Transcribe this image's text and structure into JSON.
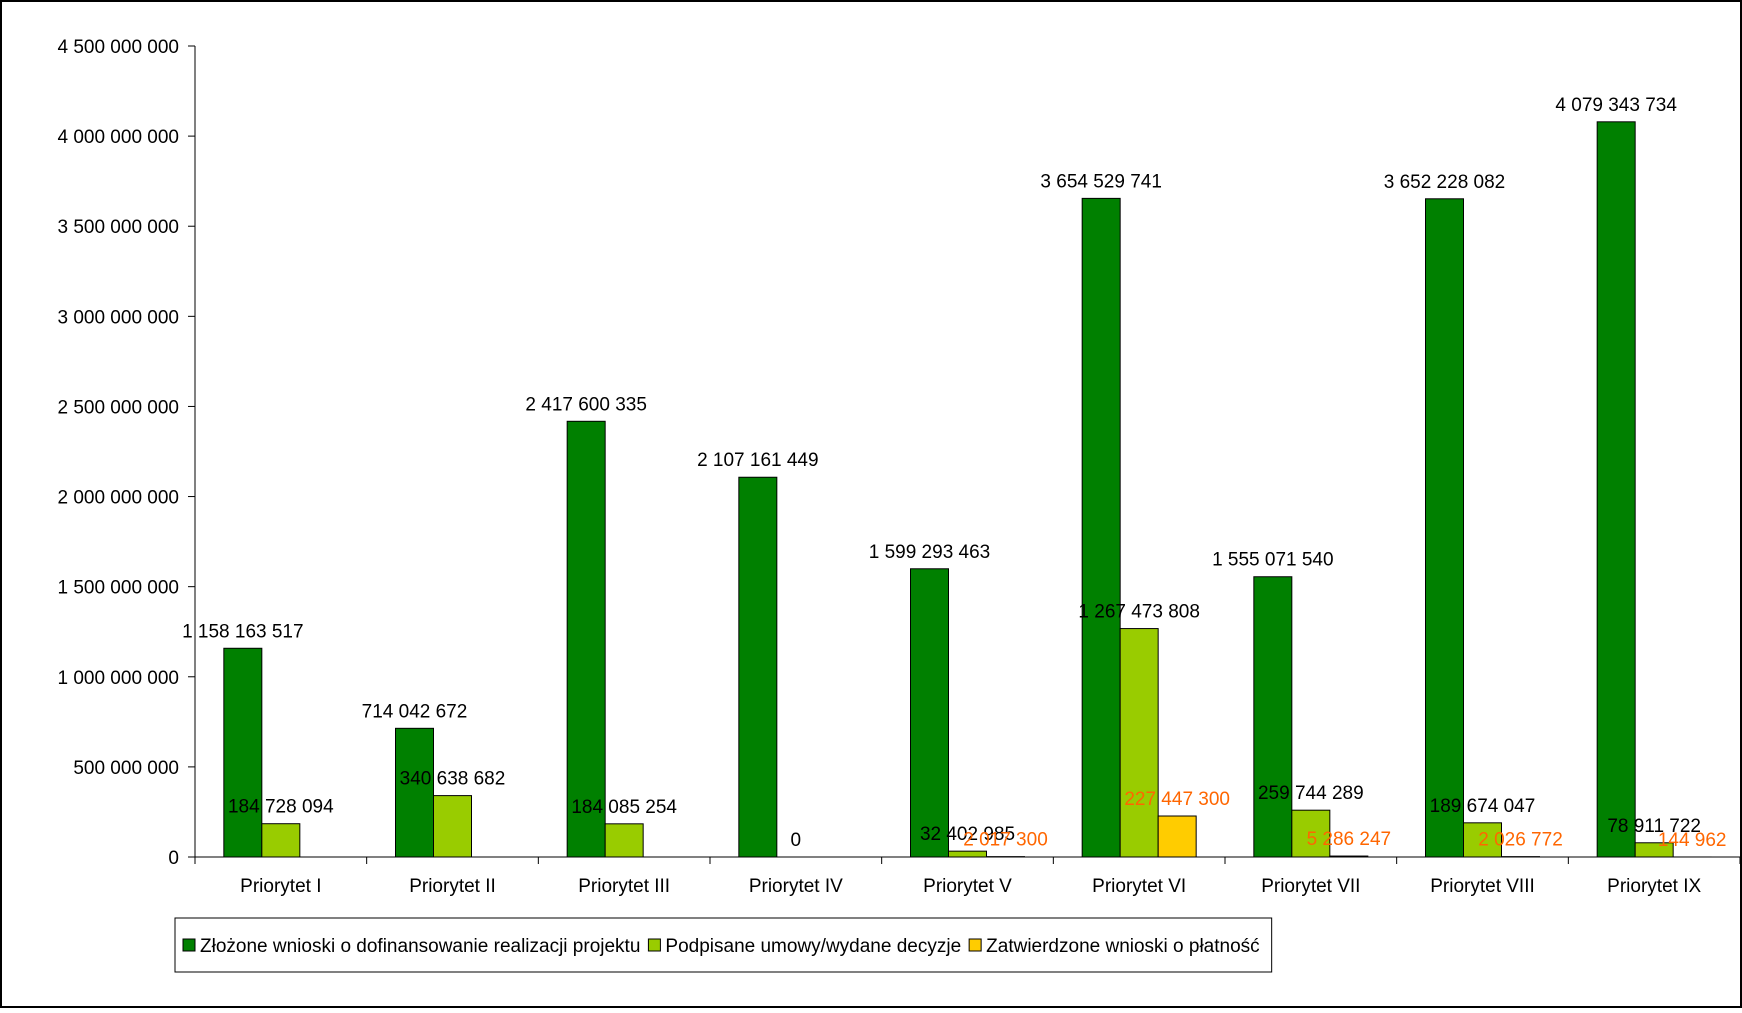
{
  "chart_data": {
    "type": "bar",
    "title": "",
    "xlabel": "",
    "ylabel": "",
    "ylim": [
      0,
      4500000000
    ],
    "y_ticks": [
      0,
      500000000,
      1000000000,
      1500000000,
      2000000000,
      2500000000,
      3000000000,
      3500000000,
      4000000000,
      4500000000
    ],
    "y_tick_labels": [
      "0",
      "500 000 000",
      "1 000 000 000",
      "1 500 000 000",
      "2 000 000 000",
      "2 500 000 000",
      "3 000 000 000",
      "3 500 000 000",
      "4 000 000 000",
      "4 500 000 000"
    ],
    "grid": false,
    "legend_position": "bottom",
    "categories": [
      "Priorytet I",
      "Priorytet II",
      "Priorytet III",
      "Priorytet IV",
      "Priorytet V",
      "Priorytet VI",
      "Priorytet VII",
      "Priorytet VIII",
      "Priorytet IX"
    ],
    "series": [
      {
        "name": "Złożone wnioski o dofinansowanie realizacji projektu",
        "color": "#008000",
        "label_color": "#000000",
        "values": [
          1158163517,
          714042672,
          2417600335,
          2107161449,
          1599293463,
          3654529741,
          1555071540,
          3652228082,
          4079343734
        ],
        "labels": [
          "1 158 163 517",
          "714 042 672",
          "2 417 600 335",
          "2 107 161 449",
          "1 599 293 463",
          "3 654 529 741",
          "1 555 071 540",
          "3 652 228 082",
          "4 079 343 734"
        ]
      },
      {
        "name": "Podpisane umowy/wydane decyzje",
        "color": "#99CC00",
        "label_color": "#000000",
        "values": [
          184728094,
          340638682,
          184085254,
          0,
          32402985,
          1267473808,
          259744289,
          189674047,
          78911722
        ],
        "labels": [
          "184 728 094",
          "340 638 682",
          "184 085 254",
          "0",
          "32 402 985",
          "1 267 473 808",
          "259 744 289",
          "189 674 047",
          "78 911 722"
        ]
      },
      {
        "name": "Zatwierdzone wnioski o płatność",
        "color": "#FFCC00",
        "label_color": "#FF6600",
        "values": [
          null,
          null,
          null,
          null,
          2017300,
          227447300,
          5286247,
          2026772,
          144962
        ],
        "labels": [
          "",
          "",
          "",
          "",
          "2 017 300",
          "227 447 300",
          "5 286 247",
          "2 026 772",
          "144 962"
        ]
      }
    ]
  }
}
